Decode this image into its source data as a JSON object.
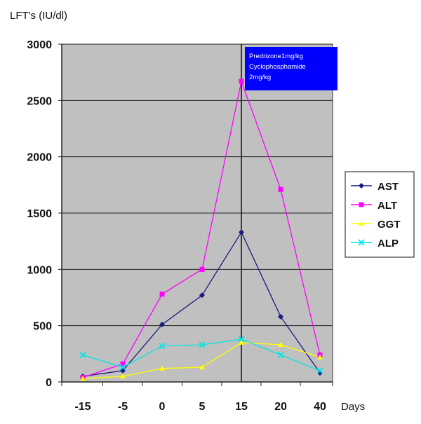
{
  "chart_data": {
    "type": "line",
    "ylabel": "LFT's (IU/dl)",
    "xlabel": "Days",
    "categories": [
      "-15",
      "-5",
      "0",
      "5",
      "15",
      "20",
      "40"
    ],
    "ylim": [
      0,
      3000
    ],
    "yticks": [
      0,
      500,
      1000,
      1500,
      2000,
      2500,
      3000
    ],
    "grid": true,
    "plot_background": "#c0c0c0",
    "legend_position": "right",
    "series": [
      {
        "name": "AST",
        "color": "#1a1a80",
        "marker": "diamond",
        "values": [
          50,
          100,
          510,
          770,
          1330,
          580,
          80
        ]
      },
      {
        "name": "ALT",
        "color": "#ff00ff",
        "marker": "square",
        "values": [
          40,
          160,
          780,
          1000,
          2670,
          1710,
          240
        ]
      },
      {
        "name": "GGT",
        "color": "#ffff00",
        "marker": "triangle",
        "values": [
          30,
          50,
          120,
          130,
          350,
          330,
          220
        ]
      },
      {
        "name": "ALP",
        "color": "#00e5e5",
        "marker": "x",
        "values": [
          240,
          130,
          320,
          330,
          380,
          240,
          100
        ]
      }
    ],
    "annotation": {
      "lines": [
        "Predrizone1mg/kg",
        "Cyclophosphamide",
        "2mg/kg"
      ],
      "at_category": "15",
      "box_color": "#0000ff",
      "text_color": "#ffffff"
    }
  }
}
